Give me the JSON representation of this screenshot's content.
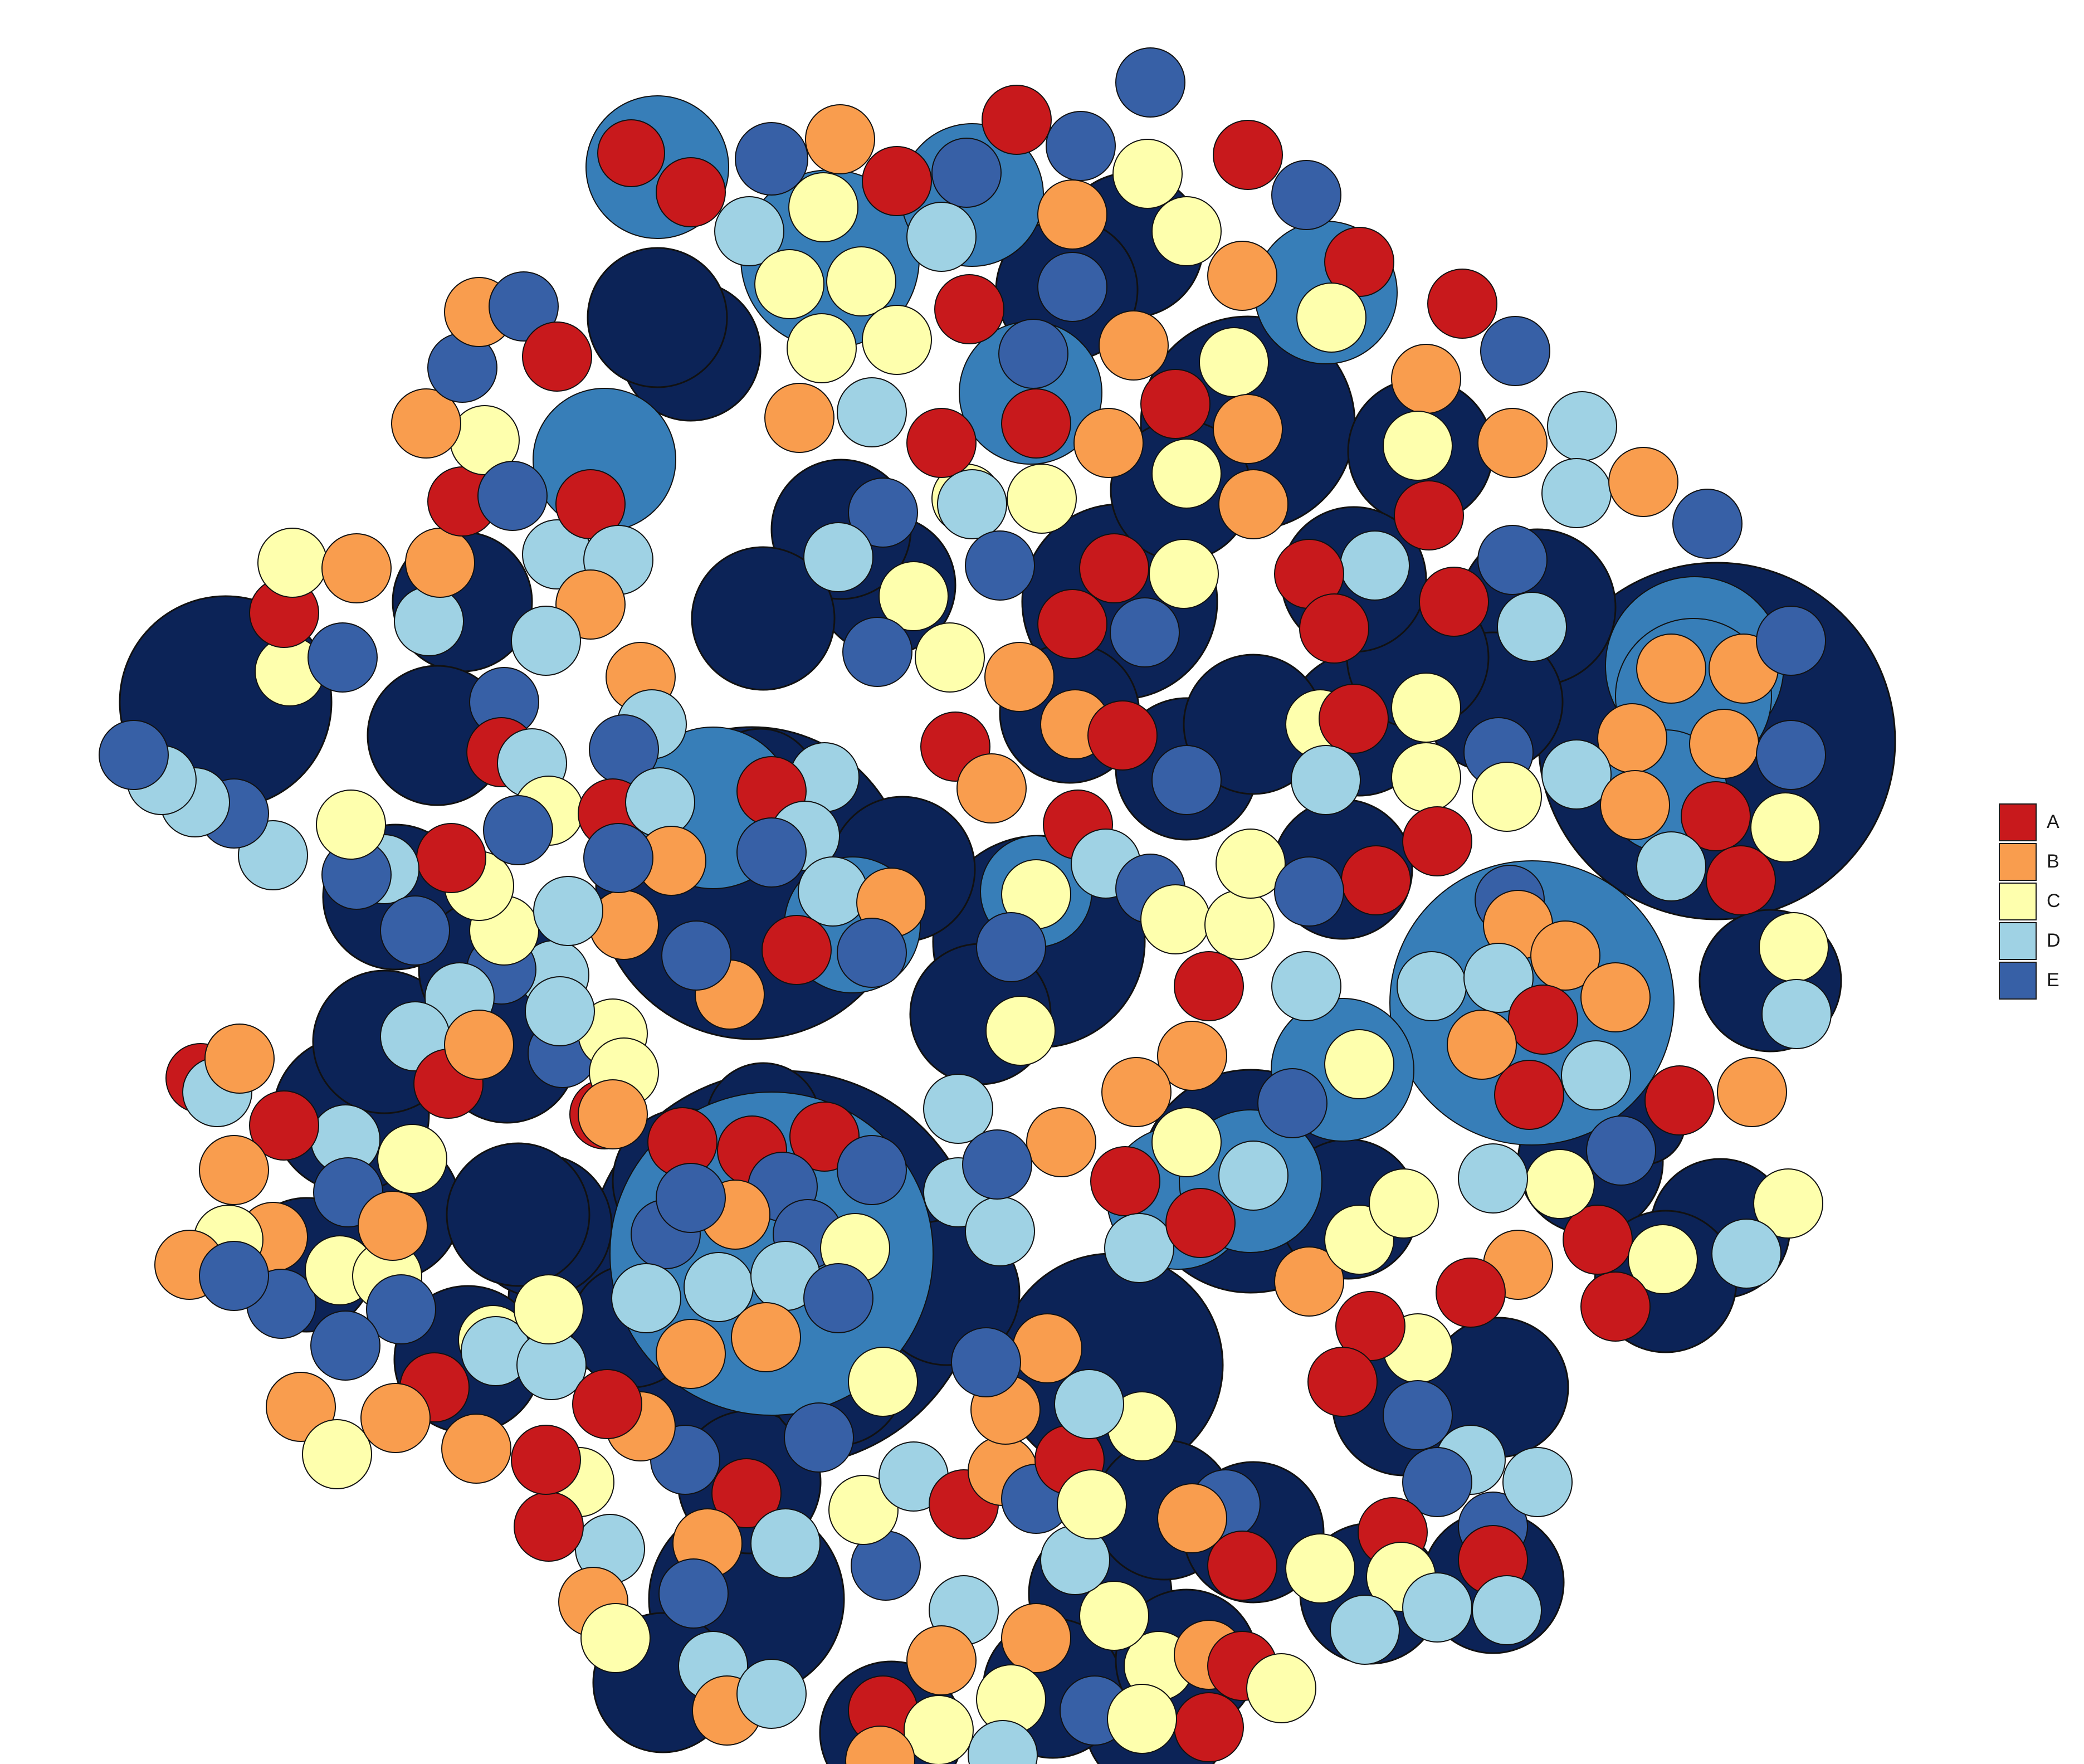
{
  "diagram": {
    "type": "circle-packing",
    "palette": {
      "level1": "#0c2357",
      "level2": "#377eb8",
      "A": "#c8191c",
      "B": "#f99d4e",
      "C": "#feffad",
      "D": "#9fd2e4",
      "E": "#3760a6",
      "stroke": "#111111"
    },
    "legend": [
      {
        "label": "A",
        "color": "#c8191c"
      },
      {
        "label": "B",
        "color": "#f99d4e"
      },
      {
        "label": "C",
        "color": "#feffad"
      },
      {
        "label": "D",
        "color": "#9fd2e4"
      },
      {
        "label": "E",
        "color": "#3760a6"
      }
    ]
  }
}
